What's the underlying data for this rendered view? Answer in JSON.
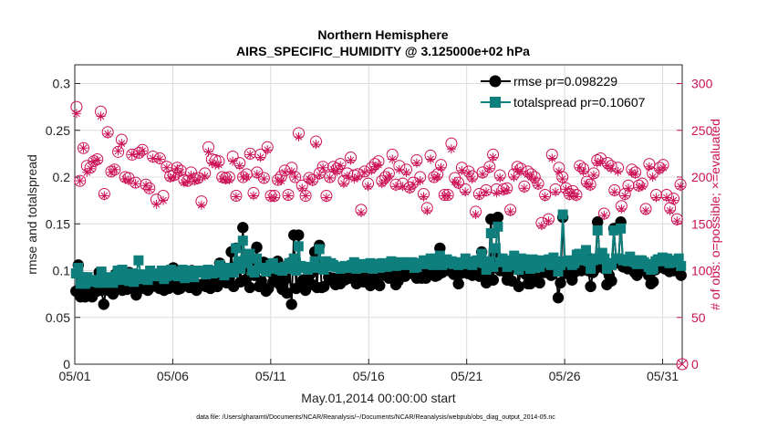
{
  "chart_data": {
    "type": "line",
    "title": "Northern Hemisphere",
    "subtitle": "AIRS_SPECIFIC_HUMIDITY @ 3.125000e+02 hPa",
    "xlabel": "May.01,2014 00:00:00 start",
    "ylabel": "rmse and totalspread",
    "y2label": "# of obs: o=possible; ×=evaluated",
    "footnote": "data file: /Users/gharamti/Documents/NCAR/Reanalysis/~/Documents/NCAR/Reanalysis/webpub/obs_diag_output_2014-05.nc",
    "xticks": [
      "05/01",
      "05/06",
      "05/11",
      "05/16",
      "05/21",
      "05/26",
      "05/31"
    ],
    "xlim": [
      0,
      31
    ],
    "ylim": [
      0,
      0.32
    ],
    "yticks": [
      "0",
      "0.05",
      "0.1",
      "0.15",
      "0.2",
      "0.25",
      "0.3"
    ],
    "y2lim": [
      0,
      320
    ],
    "y2ticks": [
      "0",
      "50",
      "100",
      "150",
      "200",
      "250",
      "300"
    ],
    "grid": true,
    "legend_position": "top-right",
    "colors": {
      "rmse": "#000000",
      "totalspread": "#0e7f7c",
      "obs": "#cc1155"
    },
    "series": [
      {
        "name": "rmse pr=0.098229",
        "marker": "filled-circle",
        "values": [
          0.078,
          0.106,
          0.072,
          0.077,
          0.072,
          0.083,
          0.081,
          0.072,
          0.081,
          0.078,
          0.098,
          0.079,
          0.064,
          0.081,
          0.079,
          0.082,
          0.075,
          0.096,
          0.092,
          0.083,
          0.079,
          0.085,
          0.08,
          0.098,
          0.083,
          0.086,
          0.074,
          0.084,
          0.081,
          0.082,
          0.085,
          0.079,
          0.082,
          0.09,
          0.087,
          0.083,
          0.081,
          0.096,
          0.079,
          0.087,
          0.081,
          0.083,
          0.103,
          0.092,
          0.08,
          0.081,
          0.084,
          0.097,
          0.085,
          0.082,
          0.1,
          0.086,
          0.079,
          0.083,
          0.085,
          0.086,
          0.083,
          0.089,
          0.081,
          0.086,
          0.087,
          0.083,
          0.108,
          0.104,
          0.091,
          0.087,
          0.088,
          0.12,
          0.083,
          0.124,
          0.107,
          0.088,
          0.146,
          0.09,
          0.11,
          0.082,
          0.103,
          0.095,
          0.125,
          0.083,
          0.089,
          0.109,
          0.078,
          0.081,
          0.098,
          0.088,
          0.092,
          0.11,
          0.085,
          0.08,
          0.09,
          0.076,
          0.108,
          0.064,
          0.138,
          0.081,
          0.138,
          0.086,
          0.09,
          0.079,
          0.086,
          0.096,
          0.085,
          0.12,
          0.082,
          0.127,
          0.082,
          0.083,
          0.107,
          0.093,
          0.09,
          0.092,
          0.085,
          0.089,
          0.086,
          0.094,
          0.09,
          0.095,
          0.092,
          0.096,
          0.093,
          0.086,
          0.093,
          0.092,
          0.088,
          0.101,
          0.089,
          0.084,
          0.092,
          0.098,
          0.092,
          0.084,
          0.102,
          0.095,
          0.097,
          0.092,
          0.103,
          0.099,
          0.085,
          0.089,
          0.095,
          0.099,
          0.094,
          0.099,
          0.099,
          0.097,
          0.102,
          0.092,
          0.093,
          0.092,
          0.106,
          0.092,
          0.1,
          0.108,
          0.099,
          0.094,
          0.095,
          0.124,
          0.098,
          0.1,
          0.108,
          0.1,
          0.105,
          0.096,
          0.102,
          0.086,
          0.097,
          0.098,
          0.106,
          0.097,
          0.097,
          0.095,
          0.1,
          0.105,
          0.094,
          0.12,
          0.097,
          0.087,
          0.099,
          0.155,
          0.09,
          0.117,
          0.157,
          0.1,
          0.106,
          0.099,
          0.09,
          0.101,
          0.089,
          0.108,
          0.111,
          0.083,
          0.108,
          0.111,
          0.096,
          0.086,
          0.086,
          0.104,
          0.089,
          0.096,
          0.087,
          0.104,
          0.098,
          0.102,
          0.108,
          0.095,
          0.109,
          0.102,
          0.071,
          0.087,
          0.157,
          0.097,
          0.097,
          0.102,
          0.09,
          0.098,
          0.11,
          0.11,
          0.1,
          0.111,
          0.117,
          0.1,
          0.083,
          0.098,
          0.102,
          0.152,
          0.107,
          0.114,
          0.102,
          0.085,
          0.095,
          0.089,
          0.145,
          0.111,
          0.108,
          0.152,
          0.104,
          0.105,
          0.102,
          0.11,
          0.102,
          0.098,
          0.095,
          0.103,
          0.103,
          0.101,
          0.099,
          0.095,
          0.086,
          0.088,
          0.101,
          0.106,
          0.104,
          0.108,
          0.102,
          0.105,
          0.099,
          0.102,
          0.1,
          0.104,
          0.106,
          0.095
        ]
      },
      {
        "name": "totalspread pr=0.10607",
        "marker": "filled-square",
        "values": [
          0.097,
          0.103,
          0.086,
          0.093,
          0.086,
          0.093,
          0.089,
          0.088,
          0.09,
          0.089,
          0.087,
          0.099,
          0.087,
          0.088,
          0.089,
          0.093,
          0.087,
          0.094,
          0.1,
          0.09,
          0.101,
          0.094,
          0.093,
          0.089,
          0.097,
          0.088,
          0.096,
          0.111,
          0.096,
          0.091,
          0.092,
          0.09,
          0.1,
          0.096,
          0.097,
          0.094,
          0.096,
          0.1,
          0.091,
          0.094,
          0.097,
          0.101,
          0.098,
          0.095,
          0.094,
          0.099,
          0.101,
          0.092,
          0.096,
          0.097,
          0.1,
          0.093,
          0.098,
          0.1,
          0.099,
          0.099,
          0.096,
          0.101,
          0.1,
          0.097,
          0.1,
          0.098,
          0.106,
          0.099,
          0.095,
          0.099,
          0.103,
          0.1,
          0.098,
          0.124,
          0.11,
          0.102,
          0.132,
          0.112,
          0.108,
          0.118,
          0.1,
          0.098,
          0.113,
          0.103,
          0.103,
          0.102,
          0.099,
          0.102,
          0.106,
          0.108,
          0.102,
          0.103,
          0.101,
          0.1,
          0.104,
          0.102,
          0.108,
          0.105,
          0.113,
          0.1,
          0.126,
          0.105,
          0.104,
          0.103,
          0.101,
          0.104,
          0.103,
          0.11,
          0.103,
          0.123,
          0.103,
          0.101,
          0.11,
          0.105,
          0.108,
          0.106,
          0.104,
          0.104,
          0.102,
          0.103,
          0.105,
          0.104,
          0.103,
          0.106,
          0.109,
          0.102,
          0.106,
          0.107,
          0.103,
          0.106,
          0.105,
          0.108,
          0.102,
          0.106,
          0.107,
          0.103,
          0.108,
          0.106,
          0.104,
          0.107,
          0.11,
          0.109,
          0.105,
          0.106,
          0.107,
          0.109,
          0.108,
          0.106,
          0.107,
          0.109,
          0.103,
          0.104,
          0.107,
          0.108,
          0.111,
          0.107,
          0.109,
          0.113,
          0.106,
          0.108,
          0.107,
          0.116,
          0.106,
          0.109,
          0.112,
          0.108,
          0.11,
          0.107,
          0.108,
          0.106,
          0.109,
          0.108,
          0.113,
          0.107,
          0.108,
          0.106,
          0.11,
          0.111,
          0.109,
          0.118,
          0.108,
          0.101,
          0.11,
          0.14,
          0.104,
          0.124,
          0.147,
          0.109,
          0.113,
          0.11,
          0.104,
          0.111,
          0.106,
          0.116,
          0.112,
          0.101,
          0.113,
          0.112,
          0.109,
          0.105,
          0.102,
          0.112,
          0.103,
          0.109,
          0.104,
          0.111,
          0.108,
          0.109,
          0.112,
          0.106,
          0.114,
          0.11,
          0.099,
          0.106,
          0.16,
          0.109,
          0.11,
          0.111,
          0.106,
          0.108,
          0.117,
          0.118,
          0.111,
          0.117,
          0.122,
          0.11,
          0.102,
          0.111,
          0.113,
          0.143,
          0.112,
          0.119,
          0.113,
          0.102,
          0.108,
          0.106,
          0.143,
          0.113,
          0.113,
          0.145,
          0.111,
          0.112,
          0.11,
          0.115,
          0.111,
          0.109,
          0.107,
          0.111,
          0.111,
          0.109,
          0.107,
          0.104,
          0.101,
          0.102,
          0.11,
          0.112,
          0.112,
          0.114,
          0.11,
          0.113,
          0.108,
          0.11,
          0.109,
          0.111,
          0.113,
          0.105
        ]
      }
    ],
    "obs_possible": [
      275,
      196,
      231,
      212,
      210,
      217,
      219,
      270,
      182,
      248,
      206,
      208,
      227,
      240,
      200,
      199,
      224,
      194,
      226,
      229,
      192,
      188,
      222,
      176,
      220,
      180,
      211,
      201,
      202,
      210,
      207,
      197,
      196,
      205,
      198,
      199,
      174,
      204,
      232,
      219,
      218,
      217,
      200,
      199,
      200,
      222,
      180,
      215,
      200,
      203,
      225,
      183,
      205,
      224,
      199,
      232,
      180,
      180,
      197,
      201,
      207,
      181,
      210,
      200,
      247,
      191,
      180,
      199,
      197,
      238,
      204,
      211,
      180,
      200,
      211,
      209,
      214,
      196,
      204,
      221,
      202,
      203,
      165,
      206,
      193,
      210,
      214,
      217,
      196,
      200,
      204,
      224,
      192,
      212,
      193,
      208,
      189,
      194,
      218,
      200,
      182,
      167,
      223,
      200,
      203,
      213,
      181,
      181,
      236,
      199,
      194,
      210,
      187,
      206,
      201,
      163,
      182,
      205,
      186,
      211,
      224,
      187,
      202,
      187,
      188,
      165,
      203,
      211,
      209,
      190,
      206,
      203,
      200,
      193,
      151,
      181,
      155,
      224,
      187,
      210,
      200,
      188,
      182,
      185,
      181,
      212,
      209,
      195,
      192,
      204,
      218,
      220,
      161,
      215,
      212,
      186,
      210,
      169,
      182,
      191,
      208,
      205,
      191,
      193,
      166,
      214,
      204,
      181,
      210,
      213,
      181,
      167,
      177,
      155,
      192
    ],
    "obs_evaluated": [
      268,
      196,
      231,
      205,
      209,
      217,
      218,
      265,
      180,
      246,
      205,
      208,
      228,
      236,
      198,
      196,
      224,
      193,
      225,
      228,
      191,
      187,
      220,
      171,
      219,
      175,
      210,
      199,
      200,
      209,
      205,
      194,
      195,
      202,
      196,
      197,
      170,
      201,
      227,
      215,
      213,
      213,
      198,
      197,
      197,
      217,
      179,
      212,
      200,
      200,
      224,
      180,
      203,
      221,
      198,
      229,
      178,
      178,
      196,
      196,
      205,
      180,
      206,
      200,
      243,
      188,
      180,
      198,
      195,
      235,
      202,
      210,
      178,
      199,
      208,
      206,
      212,
      193,
      201,
      218,
      198,
      200,
      162,
      205,
      190,
      207,
      211,
      213,
      193,
      197,
      201,
      219,
      190,
      208,
      190,
      205,
      187,
      192,
      215,
      196,
      179,
      164,
      219,
      199,
      200,
      210,
      180,
      180,
      230,
      195,
      192,
      207,
      184,
      204,
      198,
      160,
      180,
      203,
      184,
      209,
      221,
      183,
      199,
      185,
      186,
      163,
      200,
      208,
      206,
      188,
      203,
      200,
      197,
      191,
      148,
      179,
      153,
      220,
      184,
      206,
      198,
      187,
      180,
      183,
      179,
      210,
      206,
      193,
      190,
      202,
      215,
      217,
      159,
      212,
      209,
      184,
      206,
      166,
      180,
      188,
      205,
      203,
      189,
      190,
      164,
      211,
      200,
      178,
      207,
      210,
      178,
      164,
      175,
      153,
      190
    ]
  }
}
